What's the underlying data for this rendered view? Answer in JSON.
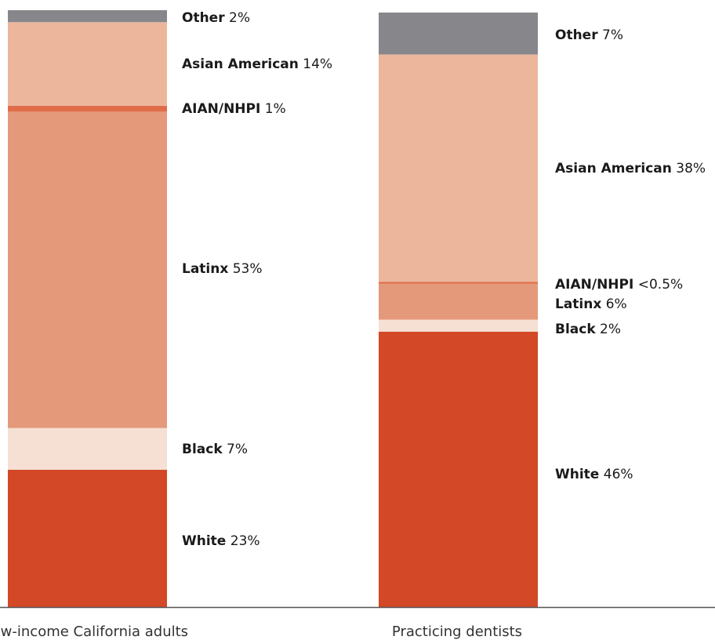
{
  "chart_data": {
    "type": "bar",
    "stacked": true,
    "orientation": "vertical",
    "categories": [
      "Low-income California adults",
      "Practicing dentists"
    ],
    "series": [
      {
        "name": "White",
        "color": "#d34827",
        "values": [
          23,
          46
        ],
        "value_labels": [
          "23%",
          "46%"
        ]
      },
      {
        "name": "Black",
        "color": "#f6dfd3",
        "values": [
          7,
          2
        ],
        "value_labels": [
          "7%",
          "2%"
        ]
      },
      {
        "name": "Latinx",
        "color": "#e4997a",
        "values": [
          53,
          6
        ],
        "value_labels": [
          "53%",
          "6%"
        ]
      },
      {
        "name": "AIAN/NHPI",
        "color": "#df6d49",
        "values": [
          1,
          0.3
        ],
        "value_labels": [
          "1%",
          "<0.5%"
        ]
      },
      {
        "name": "Asian American",
        "color": "#ecb69d",
        "values": [
          14,
          38
        ],
        "value_labels": [
          "14%",
          "38%"
        ]
      },
      {
        "name": "Other",
        "color": "#87878b",
        "values": [
          2,
          7
        ],
        "value_labels": [
          "2%",
          "7%"
        ]
      }
    ],
    "ylim": [
      0,
      100
    ],
    "grid": false,
    "legend": "inline labels beside each bar",
    "axis_color": "#555555"
  }
}
